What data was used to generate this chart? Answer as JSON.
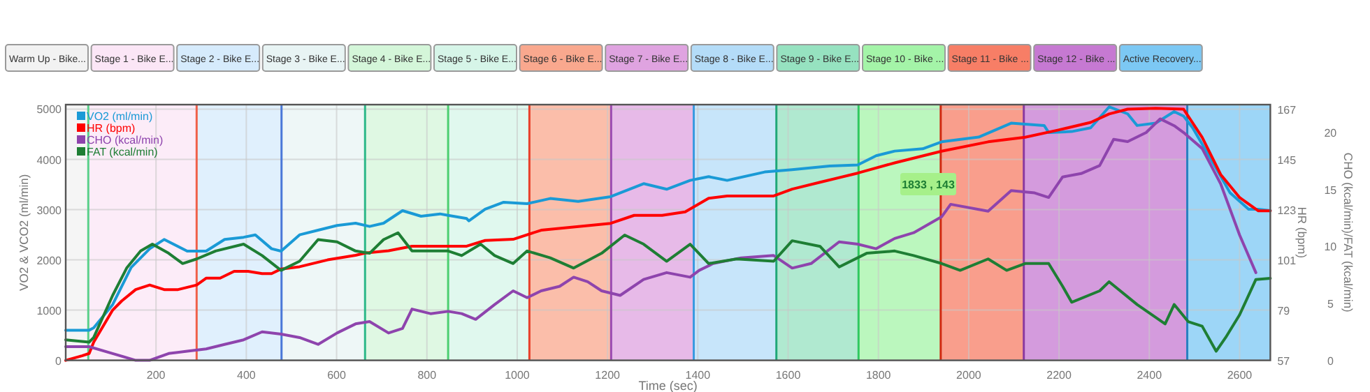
{
  "chart_data": {
    "type": "line",
    "xlabel": "Time (sec)",
    "ylabel": "VO2 & VCO2 (ml/min)",
    "y2label": "HR (bpm)",
    "y3label": "CHO (kcal/min)/FAT (kcal/min)",
    "xlim": [
      0,
      2668
    ],
    "xticks": [
      200,
      400,
      600,
      800,
      1000,
      1200,
      1400,
      1600,
      1800,
      2000,
      2200,
      2400,
      2600
    ],
    "ylim": [
      0,
      5090
    ],
    "yticks": [
      0,
      1000,
      2000,
      3000,
      4000,
      5000
    ],
    "y2lim": [
      57,
      169
    ],
    "y2ticks": [
      57,
      79,
      101,
      123,
      145,
      167
    ],
    "y3lim": [
      0,
      22.45
    ],
    "y3ticks": [
      0,
      5,
      10,
      15,
      20
    ],
    "grid": true,
    "legend": "top left",
    "series": [
      {
        "name": "VO2 (ml/min)",
        "color": "#1a9ad6",
        "axis": "y",
        "x": [
          0,
          52,
          62,
          104,
          145,
          186,
          218,
          269,
          311,
          352,
          394,
          420,
          456,
          477,
          518,
          559,
          601,
          642,
          673,
          704,
          746,
          787,
          829,
          847,
          888,
          893,
          929,
          970,
          1022,
          1073,
          1135,
          1207,
          1280,
          1331,
          1383,
          1424,
          1465,
          1548,
          1609,
          1692,
          1754,
          1795,
          1836,
          1898,
          1940,
          2022,
          2094,
          2167,
          2177,
          2228,
          2270,
          2311,
          2352,
          2373,
          2414,
          2455,
          2476,
          2496,
          2538,
          2579,
          2620,
          2641,
          2668
        ],
        "values": [
          600,
          600,
          646,
          1109,
          1850,
          2221,
          2406,
          2174,
          2174,
          2406,
          2450,
          2498,
          2221,
          2174,
          2498,
          2591,
          2684,
          2730,
          2665,
          2730,
          2980,
          2869,
          2915,
          2887,
          2823,
          2776,
          3008,
          3147,
          3119,
          3221,
          3165,
          3258,
          3517,
          3406,
          3582,
          3656,
          3582,
          3749,
          3795,
          3869,
          3888,
          4073,
          4165,
          4211,
          4350,
          4443,
          4721,
          4675,
          4536,
          4554,
          4628,
          5045,
          4906,
          4675,
          4721,
          4952,
          4860,
          4628,
          3980,
          3332,
          3008,
          3008,
          2980
        ]
      },
      {
        "name": "HR (bpm)",
        "color": "#ff0000",
        "axis": "y2",
        "x": [
          0,
          36,
          52,
          62,
          104,
          124,
          155,
          186,
          218,
          249,
          290,
          311,
          342,
          373,
          404,
          435,
          456,
          477,
          518,
          580,
          642,
          663,
          715,
          767,
          847,
          888,
          929,
          991,
          1053,
          1156,
          1207,
          1259,
          1321,
          1372,
          1424,
          1465,
          1568,
          1609,
          1671,
          1754,
          1836,
          1940,
          2043,
          2125,
          2197,
          2270,
          2311,
          2352,
          2414,
          2476,
          2517,
          2558,
          2600,
          2641,
          2668
        ],
        "values": [
          57,
          59,
          60,
          65,
          79,
          83,
          88,
          90,
          88,
          88,
          90,
          93,
          93,
          96,
          96,
          95,
          95,
          97,
          98,
          101,
          103,
          104,
          105,
          107,
          107,
          107,
          109.5,
          110,
          114,
          116,
          117,
          120.5,
          120.5,
          122,
          128,
          129,
          129,
          132,
          135,
          139,
          143.5,
          148.6,
          152.7,
          154.7,
          157.8,
          161.2,
          164.9,
          167,
          167.4,
          167,
          154.7,
          138.4,
          128.3,
          122.5,
          122.5
        ]
      },
      {
        "name": "CHO (kcal/min)",
        "color": "#8e44ad",
        "axis": "y3",
        "x": [
          0,
          52,
          104,
          155,
          186,
          228,
          269,
          311,
          352,
          394,
          435,
          477,
          518,
          559,
          601,
          642,
          673,
          715,
          746,
          767,
          808,
          847,
          877,
          908,
          950,
          991,
          1022,
          1053,
          1094,
          1125,
          1156,
          1187,
          1228,
          1280,
          1331,
          1383,
          1403,
          1434,
          1496,
          1568,
          1609,
          1651,
          1713,
          1754,
          1795,
          1836,
          1878,
          1940,
          1960,
          2043,
          2094,
          2146,
          2177,
          2208,
          2249,
          2290,
          2321,
          2352,
          2393,
          2424,
          2455,
          2476,
          2517,
          2558,
          2600,
          2636
        ],
        "values": [
          1.2,
          1.2,
          0.6,
          0,
          0,
          0.6,
          0.8,
          1.0,
          1.4,
          1.8,
          2.5,
          2.3,
          2.0,
          1.4,
          2.4,
          3.2,
          3.4,
          2.4,
          2.8,
          4.5,
          4.1,
          4.3,
          4.1,
          3.6,
          4.9,
          6.1,
          5.5,
          6.1,
          6.5,
          7.3,
          6.9,
          6.1,
          5.7,
          7.1,
          7.7,
          7.3,
          7.9,
          8.5,
          9.0,
          9.2,
          8.1,
          8.5,
          10.4,
          10.2,
          9.8,
          10.7,
          11.2,
          12.6,
          13.7,
          13.1,
          14.9,
          14.7,
          14.3,
          16.1,
          16.4,
          17.1,
          19.4,
          19.2,
          20.0,
          21.2,
          20.6,
          20.0,
          18.6,
          15.5,
          11.0,
          7.7
        ]
      },
      {
        "name": "FAT (kcal/min)",
        "color": "#1e7e34",
        "axis": "y3",
        "x": [
          0,
          52,
          62,
          104,
          135,
          166,
          192,
          228,
          259,
          290,
          332,
          394,
          435,
          477,
          518,
          559,
          601,
          642,
          673,
          704,
          736,
          767,
          808,
          847,
          877,
          919,
          950,
          991,
          1022,
          1073,
          1125,
          1187,
          1238,
          1280,
          1331,
          1383,
          1424,
          1486,
          1568,
          1609,
          1671,
          1713,
          1774,
          1836,
          1878,
          1940,
          1981,
          2043,
          2084,
          2125,
          2177,
          2208,
          2228,
          2290,
          2311,
          2373,
          2435,
          2455,
          2486,
          2517,
          2548,
          2569,
          2600,
          2636,
          2668
        ],
        "values": [
          1.8,
          1.6,
          2.0,
          5.7,
          8.1,
          9.6,
          10.2,
          9.4,
          8.5,
          8.9,
          9.6,
          10.2,
          9.2,
          7.9,
          8.7,
          10.6,
          10.4,
          9.6,
          9.4,
          10.6,
          11.2,
          9.6,
          9.6,
          9.6,
          9.2,
          10.2,
          9.2,
          8.5,
          9.6,
          9.0,
          8.1,
          9.4,
          11.0,
          10.2,
          8.7,
          10.2,
          8.5,
          8.9,
          8.7,
          10.5,
          10.0,
          8.2,
          9.4,
          9.6,
          9.2,
          8.5,
          7.9,
          8.9,
          7.9,
          8.5,
          8.5,
          6.5,
          5.1,
          6.1,
          6.9,
          4.9,
          3.2,
          4.9,
          3.4,
          3.0,
          0.8,
          2.0,
          4.0,
          7.1,
          7.2
        ]
      }
    ],
    "bands": [
      {
        "axis": "x",
        "from": 0,
        "to": 50,
        "color": "#f2f2f2"
      },
      {
        "axis": "x",
        "from": 50,
        "to": 290,
        "color": "#fbe6f6"
      },
      {
        "axis": "x",
        "from": 290,
        "to": 478,
        "color": "#d6ebfc"
      },
      {
        "axis": "x",
        "from": 478,
        "to": 663,
        "color": "#e8f4f4"
      },
      {
        "axis": "x",
        "from": 663,
        "to": 847,
        "color": "#d4f6d9"
      },
      {
        "axis": "x",
        "from": 847,
        "to": 1027,
        "color": "#d6f5e8"
      },
      {
        "axis": "x",
        "from": 1027,
        "to": 1208,
        "color": "#f9a88e"
      },
      {
        "axis": "x",
        "from": 1208,
        "to": 1391,
        "color": "#dfa3e0"
      },
      {
        "axis": "x",
        "from": 1391,
        "to": 1574,
        "color": "#b4dcf8"
      },
      {
        "axis": "x",
        "from": 1574,
        "to": 1756,
        "color": "#96e2c0"
      },
      {
        "axis": "x",
        "from": 1756,
        "to": 1938,
        "color": "#a4f4a8"
      },
      {
        "axis": "x",
        "from": 1938,
        "to": 2122,
        "color": "#f77e66"
      },
      {
        "axis": "x",
        "from": 2122,
        "to": 2484,
        "color": "#c679d2"
      },
      {
        "axis": "x",
        "from": 2484,
        "to": 2668,
        "color": "#7cc8f4"
      }
    ],
    "ref_lines": [
      {
        "axis": "x",
        "value": 50,
        "color": "#5ad08a"
      },
      {
        "axis": "x",
        "value": 290,
        "color": "#f0604a"
      },
      {
        "axis": "x",
        "value": 478,
        "color": "#4a78d8"
      },
      {
        "axis": "x",
        "value": 663,
        "color": "#2db888"
      },
      {
        "axis": "x",
        "value": 847,
        "color": "#4ccf70"
      },
      {
        "axis": "x",
        "value": 1027,
        "color": "#e8402a"
      },
      {
        "axis": "x",
        "value": 1208,
        "color": "#9a4ab0"
      },
      {
        "axis": "x",
        "value": 1391,
        "color": "#3a9ae0"
      },
      {
        "axis": "x",
        "value": 1574,
        "color": "#20a878"
      },
      {
        "axis": "x",
        "value": 1756,
        "color": "#30c860"
      },
      {
        "axis": "x",
        "value": 1938,
        "color": "#d02a10"
      },
      {
        "axis": "x",
        "value": 2122,
        "color": "#8a3aa0"
      },
      {
        "axis": "x",
        "value": 2484,
        "color": "#2a80c0"
      }
    ],
    "annotations": [
      "Warm Up - Bike...",
      "Stage 1 - Bike E...",
      "Stage 2 - Bike E...",
      "Stage 3 - Bike E...",
      "Stage 4 - Bike E...",
      "Stage 5 - Bike E...",
      "Stage 6 - Bike E...",
      "Stage 7 - Bike E...",
      "Stage 8 - Bike E...",
      "Stage 9 - Bike E...",
      "Stage 10 - Bike ...",
      "Stage 11 - Bike ...",
      "Stage 12 - Bike ...",
      "Active Recovery...",
      "1833 , 143"
    ]
  }
}
